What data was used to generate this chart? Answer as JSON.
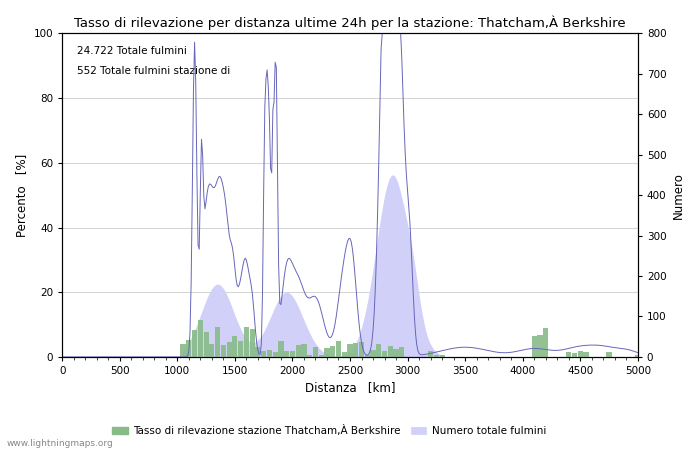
{
  "title": "Tasso di rilevazione per distanza ultime 24h per la stazione: Thatcham,À Berkshire",
  "annotation_line1": "24.722 Totale fulmini",
  "annotation_line2": "552 Totale fulmini stazione di",
  "xlabel": "Distanza   [km]",
  "ylabel_left": "Percento   [%]",
  "ylabel_right": "Numero",
  "xlim": [
    0,
    5000
  ],
  "ylim_left": [
    0,
    100
  ],
  "ylim_right": [
    0,
    800
  ],
  "xticks": [
    0,
    500,
    1000,
    1500,
    2000,
    2500,
    3000,
    3500,
    4000,
    4500,
    5000
  ],
  "yticks_left": [
    0,
    20,
    40,
    60,
    80,
    100
  ],
  "yticks_right": [
    0,
    100,
    200,
    300,
    400,
    500,
    600,
    700,
    800
  ],
  "legend_label_green": "Tasso di rilevazione stazione Thatcham,À Berkshire",
  "legend_label_blue": "Numero totale fulmini",
  "watermark": "www.lightningmaps.org",
  "background_color": "#ffffff",
  "plot_bg_color": "#ffffff",
  "grid_color": "#cccccc",
  "blue_fill_color": "#d0d0f8",
  "blue_line_color": "#6666bb",
  "green_bar_color": "#88bb88",
  "scale_factor": 8.0
}
